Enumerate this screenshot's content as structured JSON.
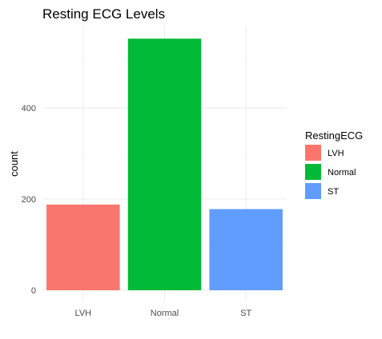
{
  "chart_data": {
    "type": "bar",
    "title": "Resting ECG Levels",
    "xlabel": "",
    "ylabel": "count",
    "categories": [
      "LVH",
      "Normal",
      "ST"
    ],
    "values": [
      188,
      552,
      178
    ],
    "ylim": [
      0,
      580
    ],
    "yticks": [
      0,
      200,
      400
    ],
    "grid": true,
    "legend": {
      "title": "RestingECG",
      "placement": "right",
      "entries": [
        "LVH",
        "Normal",
        "ST"
      ]
    },
    "colors": [
      "#F8766D",
      "#00BA38",
      "#619CFF"
    ]
  }
}
